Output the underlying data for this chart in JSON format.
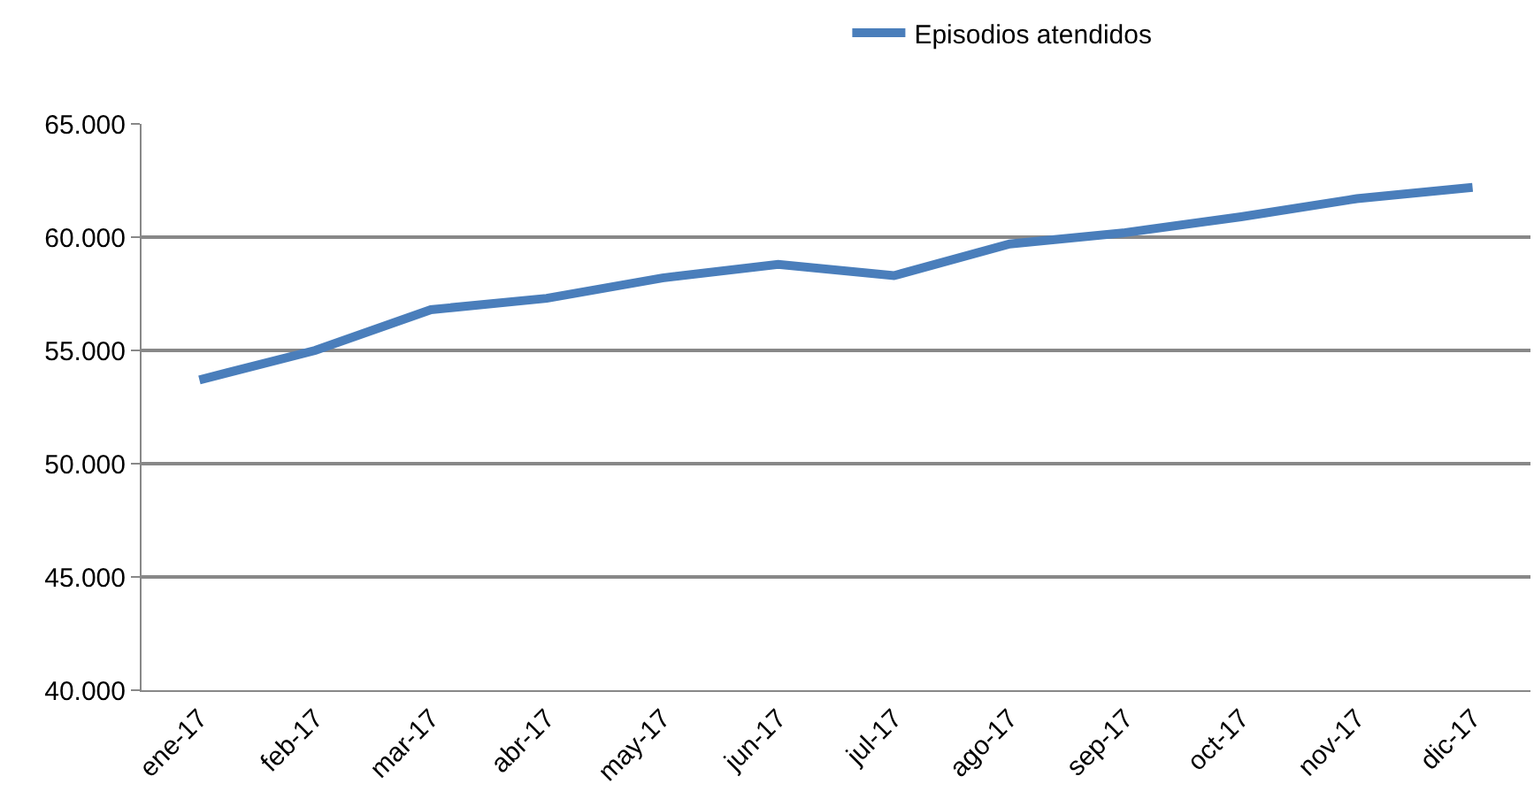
{
  "chart_data": {
    "type": "line",
    "categories": [
      "ene-17",
      "feb-17",
      "mar-17",
      "abr-17",
      "may-17",
      "jun-17",
      "jul-17",
      "ago-17",
      "sep-17",
      "oct-17",
      "nov-17",
      "dic-17"
    ],
    "series": [
      {
        "name": "Episodios atendidos",
        "color": "#4a7ebb",
        "values": [
          53700,
          55000,
          56800,
          57300,
          58200,
          58800,
          58300,
          59700,
          60200,
          60900,
          61700,
          62200
        ]
      }
    ],
    "ylim": [
      40000,
      65000
    ],
    "yticks": [
      {
        "value": 40000,
        "label": "40.000"
      },
      {
        "value": 45000,
        "label": "45.000"
      },
      {
        "value": 50000,
        "label": "50.000"
      },
      {
        "value": 55000,
        "label": "55.000"
      },
      {
        "value": 60000,
        "label": "60.000"
      },
      {
        "value": 65000,
        "label": "65.000"
      }
    ],
    "grid": "y",
    "legend": "top",
    "marker": "none",
    "line_style": "solid"
  }
}
